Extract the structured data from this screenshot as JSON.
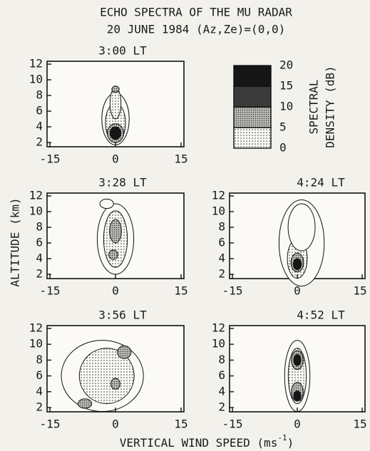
{
  "figure": {
    "title": "ECHO SPECTRA OF THE MU RADAR",
    "subtitle": "20 JUNE 1984 (Az,Ze)=(0,0)",
    "y_label": "ALTITUDE (km)",
    "x_label": "VERTICAL WIND SPEED (ms",
    "x_label_sup": "-1",
    "x_label_end": ")",
    "colorbar": {
      "label_line1": "SPECTRAL",
      "label_line2": "DENSITY (dB)",
      "levels": [
        0,
        5,
        10,
        15,
        20
      ]
    },
    "panels": [
      {
        "title": "3:00 LT",
        "xticks": [
          -15,
          0,
          15
        ],
        "yticks": [
          2,
          4,
          6,
          8,
          10,
          12
        ]
      },
      {
        "title": "3:28 LT",
        "xticks": [
          -15,
          0,
          15
        ],
        "yticks": [
          2,
          4,
          6,
          8,
          10,
          12
        ]
      },
      {
        "title": "4:24 LT",
        "xticks": [
          -15,
          0,
          15
        ],
        "yticks": [
          2,
          4,
          6,
          8,
          10,
          12
        ]
      },
      {
        "title": "3:56 LT",
        "xticks": [
          -15,
          0,
          15
        ],
        "yticks": [
          2,
          4,
          6,
          8,
          10,
          12
        ]
      },
      {
        "title": "4:52 LT",
        "xticks": [
          -15,
          0,
          15
        ],
        "yticks": [
          2,
          4,
          6,
          8,
          10,
          12
        ]
      }
    ]
  }
}
